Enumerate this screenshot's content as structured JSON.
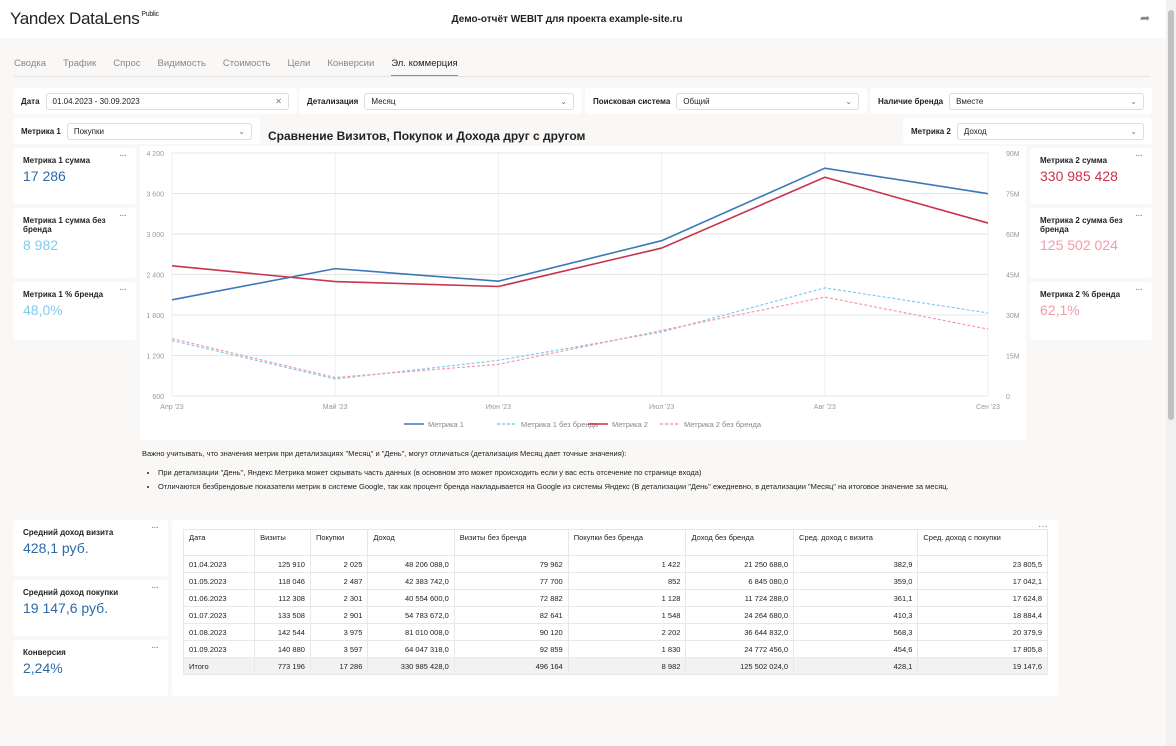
{
  "header": {
    "logo": "Yandex DataLens",
    "logo_badge": "Public",
    "title": "Демо-отчёт WEBIT для проекта example-site.ru",
    "share_icon": "share-icon"
  },
  "tabs": [
    {
      "label": "Сводка"
    },
    {
      "label": "Трафик"
    },
    {
      "label": "Спрос"
    },
    {
      "label": "Видимость"
    },
    {
      "label": "Стоимость"
    },
    {
      "label": "Цели"
    },
    {
      "label": "Конверсии"
    },
    {
      "label": "Эл. коммерция",
      "active": true
    }
  ],
  "filters": {
    "date": {
      "label": "Дата",
      "value": "01.04.2023 - 30.09.2023"
    },
    "detail": {
      "label": "Детализация",
      "value": "Месяц"
    },
    "engine": {
      "label": "Поисковая система",
      "value": "Общий"
    },
    "brand": {
      "label": "Наличие бренда",
      "value": "Вместе"
    },
    "metric1": {
      "label": "Метрика 1",
      "value": "Покупки"
    },
    "metric2": {
      "label": "Метрика 2",
      "value": "Доход"
    }
  },
  "kpi_left": [
    {
      "label": "Метрика 1 сумма",
      "value": "17 286"
    },
    {
      "label": "Метрика 1 сумма без бренда",
      "value": "8 982"
    },
    {
      "label": "Метрика 1 % бренда",
      "value": "48,0%"
    }
  ],
  "kpi_right": [
    {
      "label": "Метрика 2 сумма",
      "value": "330 985 428"
    },
    {
      "label": "Метрика 2 сумма без бренда",
      "value": "125 502 024"
    },
    {
      "label": "Метрика 2 % бренда",
      "value": "62,1%"
    }
  ],
  "colors": {
    "m1": "#3a78b8",
    "m1nb": "#7fcdee",
    "m2": "#c9334f",
    "m2nb": "#f59aaa",
    "kpi_dark_blue": "#2d6aa8",
    "kpi_light_blue": "#7fcdee",
    "kpi_red": "#c9334f",
    "kpi_pink": "#f59aaa"
  },
  "chart_data": {
    "type": "line",
    "title": "Сравнение Визитов, Покупок и Дохода друг с другом",
    "categories": [
      "Апр '23",
      "Май '23",
      "Июн '23",
      "Июл '23",
      "Авг '23",
      "Сен '23"
    ],
    "y_left": {
      "range": [
        600,
        4200
      ],
      "ticks": [
        "600",
        "1 200",
        "1 800",
        "2 400",
        "3 000",
        "3 600",
        "4 200"
      ]
    },
    "y_right": {
      "range": [
        0,
        90000000
      ],
      "ticks": [
        "0",
        "15M",
        "30M",
        "45M",
        "60M",
        "75M",
        "90M"
      ]
    },
    "grid": true,
    "legend": "bottom",
    "series": [
      {
        "name": "Метрика 1",
        "axis": "left",
        "dash": false,
        "values": [
          2025,
          2487,
          2301,
          2901,
          3975,
          3597
        ]
      },
      {
        "name": "Метрика 1 без бренда",
        "axis": "left",
        "dash": true,
        "values": [
          1422,
          852,
          1128,
          1548,
          2202,
          1830
        ]
      },
      {
        "name": "Метрика 2",
        "axis": "right",
        "dash": false,
        "values": [
          48206088,
          42383742,
          40554600,
          54783672,
          81010008,
          64047318
        ]
      },
      {
        "name": "Метрика 2 без бренда",
        "axis": "right",
        "dash": true,
        "values": [
          21250688,
          6845080,
          11724288,
          24264680,
          36644832,
          24772456
        ]
      }
    ]
  },
  "notes": {
    "intro": "Важно учитывать, что значения метрик при детализациях \"Месяц\" и \"День\", могут отличаться (детализация Месяц дает точные значения):",
    "items": [
      "При детализации \"День\", Яндекс Метрика может скрывать часть данных (в основном это может происходить если у вас есть отсечение по странице входа)",
      "Отличаются безбрендовые показатели метрик в системе Google, так как процент бренда накладывается на Google из системы Яндекс (В детализации \"День\" ежедневно, в детализации \"Месяц\" на итоговое значение за месяц."
    ]
  },
  "kpi_bottom": [
    {
      "label": "Средний доход визита",
      "value": "428,1 руб."
    },
    {
      "label": "Средний доход покупки",
      "value": "19 147,6 руб."
    },
    {
      "label": "Конверсия",
      "value": "2,24%"
    }
  ],
  "table": {
    "columns": [
      "Дата",
      "Визиты",
      "Покупки",
      "Доход",
      "Визиты без бренда",
      "Покупки без бренда",
      "Доход без бренда",
      "Сред. доход с визита",
      "Сред. доход с покупки"
    ],
    "rows": [
      [
        "01.04.2023",
        "125 910",
        "2 025",
        "48 206 088,0",
        "79 962",
        "1 422",
        "21 250 688,0",
        "382,9",
        "23 805,5"
      ],
      [
        "01.05.2023",
        "118 046",
        "2 487",
        "42 383 742,0",
        "77 700",
        "852",
        "6 845 080,0",
        "359,0",
        "17 042,1"
      ],
      [
        "01.06.2023",
        "112 308",
        "2 301",
        "40 554 600,0",
        "72 882",
        "1 128",
        "11 724 288,0",
        "361,1",
        "17 624,8"
      ],
      [
        "01.07.2023",
        "133 508",
        "2 901",
        "54 783 672,0",
        "82 641",
        "1 548",
        "24 264 680,0",
        "410,3",
        "18 884,4"
      ],
      [
        "01.08.2023",
        "142 544",
        "3 975",
        "81 010 008,0",
        "90 120",
        "2 202",
        "36 644 832,0",
        "568,3",
        "20 379,9"
      ],
      [
        "01.09.2023",
        "140 880",
        "3 597",
        "64 047 318,0",
        "92 859",
        "1 830",
        "24 772 456,0",
        "454,6",
        "17 805,8"
      ]
    ],
    "total": [
      "Итого",
      "773 196",
      "17 286",
      "330 985 428,0",
      "496 164",
      "8 982",
      "125 502 024,0",
      "428,1",
      "19 147,6"
    ]
  }
}
